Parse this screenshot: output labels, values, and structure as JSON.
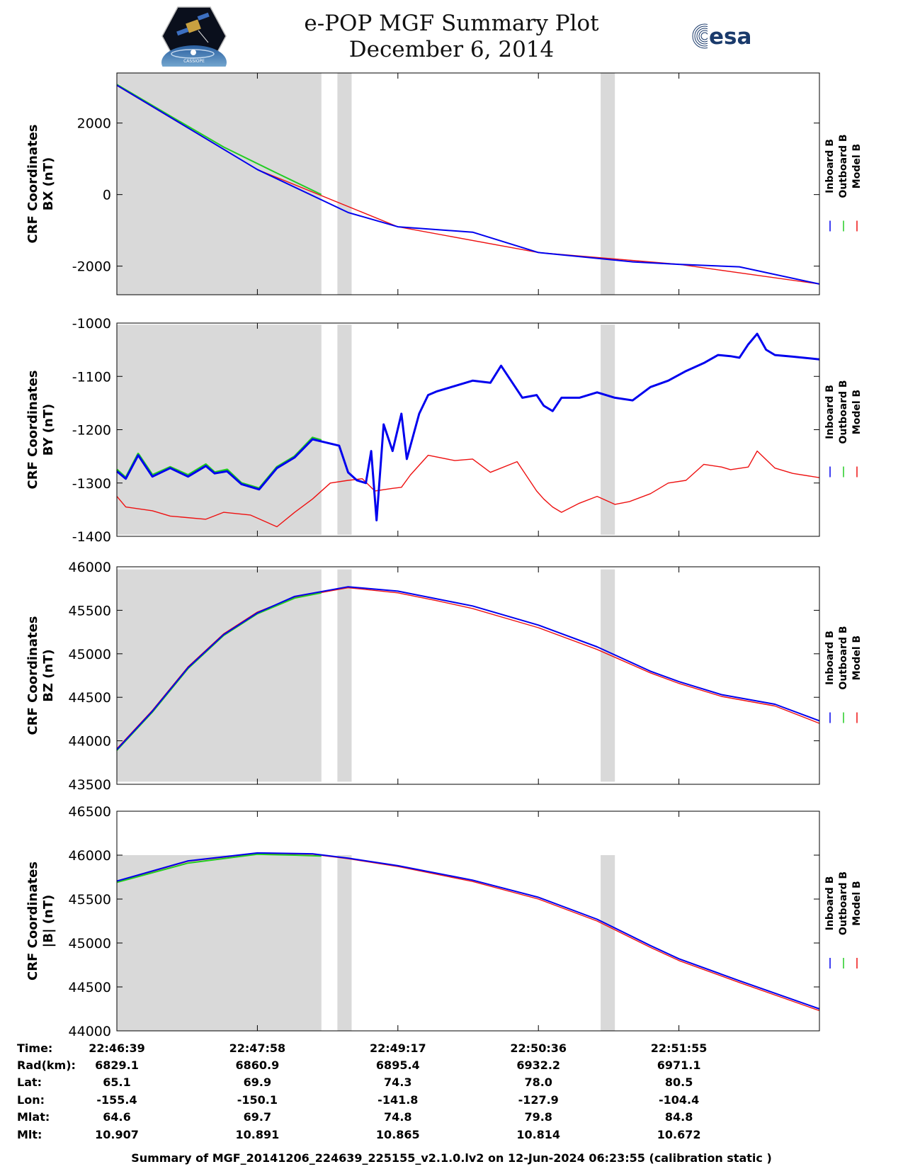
{
  "header": {
    "title": "e-POP MGF Summary Plot",
    "date": "December 6, 2014",
    "logo_right_text": "esa",
    "logo_left_text": "CASSIOPE"
  },
  "legend": {
    "labels": [
      "Inboard B",
      "Outboard B",
      "Model B"
    ],
    "colors": [
      "#0000ee",
      "#22cc22",
      "#ee1111"
    ]
  },
  "shading_color": "#d9d9d9",
  "chart_data": [
    {
      "type": "line",
      "ylabel": [
        "CRF Coordinates",
        "BX (nT)"
      ],
      "ylim": [
        -2800,
        3400
      ],
      "yticks": [
        2000,
        0,
        -2000
      ],
      "ytick_labels": [
        "2000",
        "0",
        "-2000"
      ],
      "shaded_y": [
        -2800,
        3400
      ],
      "series": [
        {
          "name": "Model B",
          "x": [
            0,
            79,
            158,
            237,
            316,
            395
          ],
          "y": [
            3050,
            700,
            -900,
            -1620,
            -1950,
            -2500
          ]
        },
        {
          "name": "Outboard B",
          "x": [
            0,
            30,
            60,
            90,
            115
          ],
          "y": [
            3080,
            2200,
            1330,
            600,
            1
          ]
        },
        {
          "name": "Inboard B",
          "x": [
            0,
            79,
            130,
            158,
            200,
            237,
            290,
            316,
            350,
            395
          ],
          "y": [
            3060,
            700,
            -500,
            -900,
            -1050,
            -1620,
            -1880,
            -1950,
            -2020,
            -2500
          ]
        }
      ]
    },
    {
      "type": "line",
      "ylabel": [
        "CRF Coordinates",
        "BY (nT)"
      ],
      "ylim": [
        -1400,
        -1000
      ],
      "yticks": [
        -1000,
        -1100,
        -1200,
        -1300,
        -1400
      ],
      "ytick_labels": [
        "-1000",
        "-1100",
        "-1200",
        "-1300",
        "-1400"
      ],
      "shaded_y": [
        -1397,
        -1003
      ],
      "series": [
        {
          "name": "Model B",
          "x": [
            0,
            5,
            20,
            30,
            50,
            60,
            75,
            90,
            100,
            110,
            120,
            130,
            138,
            145,
            155,
            160,
            165,
            175,
            190,
            200,
            210,
            225,
            236,
            240,
            245,
            250,
            260,
            270,
            280,
            288,
            300,
            310,
            320,
            330,
            340,
            345,
            355,
            360,
            370,
            380,
            395
          ],
          "y": [
            -1325,
            -1345,
            -1352,
            -1362,
            -1368,
            -1355,
            -1360,
            -1382,
            -1355,
            -1330,
            -1300,
            -1295,
            -1292,
            -1315,
            -1310,
            -1308,
            -1285,
            -1248,
            -1258,
            -1255,
            -1280,
            -1260,
            -1315,
            -1330,
            -1345,
            -1355,
            -1338,
            -1325,
            -1340,
            -1335,
            -1320,
            -1300,
            -1295,
            -1265,
            -1270,
            -1275,
            -1270,
            -1240,
            -1272,
            -1282,
            -1290
          ]
        },
        {
          "name": "Outboard B",
          "x": [
            0,
            5,
            12,
            20,
            30,
            40,
            50,
            55,
            62,
            70,
            80,
            90,
            100,
            110,
            115
          ],
          "y": [
            -1275,
            -1290,
            -1245,
            -1285,
            -1270,
            -1285,
            -1265,
            -1280,
            -1275,
            -1300,
            -1310,
            -1270,
            -1250,
            -1215,
            -1220
          ]
        },
        {
          "name": "Inboard B",
          "x": [
            0,
            5,
            12,
            20,
            30,
            40,
            50,
            55,
            62,
            70,
            80,
            90,
            100,
            110,
            115,
            125,
            130,
            135,
            140,
            143,
            146,
            150,
            155,
            160,
            163,
            170,
            175,
            180,
            190,
            200,
            210,
            216,
            228,
            236,
            240,
            245,
            250,
            260,
            270,
            280,
            290,
            300,
            310,
            320,
            330,
            338,
            345,
            350,
            355,
            360,
            365,
            370,
            380,
            395
          ],
          "y": [
            -1278,
            -1292,
            -1248,
            -1288,
            -1272,
            -1288,
            -1268,
            -1282,
            -1278,
            -1302,
            -1312,
            -1272,
            -1252,
            -1218,
            -1222,
            -1230,
            -1280,
            -1295,
            -1300,
            -1240,
            -1370,
            -1190,
            -1240,
            -1170,
            -1255,
            -1170,
            -1135,
            -1128,
            -1118,
            -1108,
            -1112,
            -1080,
            -1140,
            -1135,
            -1155,
            -1165,
            -1140,
            -1140,
            -1130,
            -1140,
            -1145,
            -1120,
            -1108,
            -1090,
            -1075,
            -1060,
            -1062,
            -1065,
            -1040,
            -1020,
            -1050,
            -1060,
            -1063,
            -1068
          ]
        }
      ]
    },
    {
      "type": "line",
      "ylabel": [
        "CRF Coordinates",
        "BZ (nT)"
      ],
      "ylim": [
        43500,
        46000
      ],
      "yticks": [
        46000,
        45500,
        45000,
        44500,
        44000,
        43500
      ],
      "ytick_labels": [
        "46000",
        "45500",
        "45000",
        "44500",
        "44000",
        "43500"
      ],
      "shaded_y": [
        43530,
        45970
      ],
      "series": [
        {
          "name": "Model B",
          "x": [
            0,
            20,
            40,
            60,
            79,
            100,
            130,
            158,
            180,
            200,
            237,
            270,
            300,
            316,
            340,
            370,
            395
          ],
          "y": [
            43910,
            44350,
            44850,
            45230,
            45480,
            45650,
            45760,
            45700,
            45610,
            45520,
            45300,
            45050,
            44780,
            44660,
            44510,
            44400,
            44200
          ]
        },
        {
          "name": "Outboard B",
          "x": [
            0,
            20,
            40,
            60,
            79,
            100,
            115
          ],
          "y": [
            43890,
            44330,
            44830,
            45210,
            45460,
            45640,
            45700
          ]
        },
        {
          "name": "Inboard B",
          "x": [
            0,
            20,
            40,
            60,
            79,
            100,
            130,
            158,
            180,
            200,
            237,
            270,
            300,
            316,
            340,
            370,
            395
          ],
          "y": [
            43900,
            44340,
            44840,
            45220,
            45470,
            45660,
            45770,
            45720,
            45630,
            45550,
            45330,
            45080,
            44800,
            44680,
            44530,
            44420,
            44230
          ]
        }
      ]
    },
    {
      "type": "line",
      "ylabel": [
        "CRF Coordinates",
        "|B| (nT)"
      ],
      "ylim": [
        44000,
        46500
      ],
      "yticks": [
        46500,
        46000,
        45500,
        45000,
        44500,
        44000
      ],
      "ytick_labels": [
        "46500",
        "46000",
        "45500",
        "45000",
        "44500",
        "44000"
      ],
      "shaded_y": [
        44000,
        46000
      ],
      "series": [
        {
          "name": "Model B",
          "x": [
            0,
            40,
            79,
            110,
            130,
            158,
            200,
            237,
            270,
            300,
            316,
            350,
            395
          ],
          "y": [
            45700,
            45930,
            46020,
            46010,
            45960,
            45870,
            45700,
            45500,
            45250,
            44950,
            44800,
            44550,
            44230
          ]
        },
        {
          "name": "Outboard B",
          "x": [
            0,
            40,
            79,
            100,
            115
          ],
          "y": [
            45690,
            45910,
            46010,
            46000,
            45990
          ]
        },
        {
          "name": "Inboard B",
          "x": [
            0,
            40,
            79,
            110,
            130,
            158,
            200,
            237,
            270,
            300,
            316,
            350,
            395
          ],
          "y": [
            45705,
            45935,
            46025,
            46015,
            45965,
            45880,
            45715,
            45520,
            45270,
            44970,
            44820,
            44570,
            44250
          ]
        }
      ]
    }
  ],
  "x_axis": {
    "unit": "seconds from 22:46:39",
    "range": [
      0,
      395
    ],
    "ticks": [
      0,
      79,
      158,
      237,
      316,
      395
    ],
    "shaded_x": [
      [
        0,
        115
      ],
      [
        124,
        132
      ],
      [
        272,
        280
      ]
    ]
  },
  "ephemeris": {
    "row_labels": [
      "Time:",
      "Rad(km):",
      "Lat:",
      "Lon:",
      "Mlat:",
      "Mlt:"
    ],
    "columns": [
      [
        "22:46:39",
        "6829.1",
        "65.1",
        "-155.4",
        "64.6",
        "10.907"
      ],
      [
        "22:47:58",
        "6860.9",
        "69.9",
        "-150.1",
        "69.7",
        "10.891"
      ],
      [
        "22:49:17",
        "6895.4",
        "74.3",
        "-141.8",
        "74.8",
        "10.865"
      ],
      [
        "22:50:36",
        "6932.2",
        "78.0",
        "-127.9",
        "79.8",
        "10.814"
      ],
      [
        "22:51:55",
        "6971.1",
        "80.5",
        "-104.4",
        "84.8",
        "10.672"
      ]
    ]
  },
  "footer": "Summary of MGF_20141206_224639_225155_v2.1.0.lv2 on 12-Jun-2024 06:23:55 (calibration static )"
}
